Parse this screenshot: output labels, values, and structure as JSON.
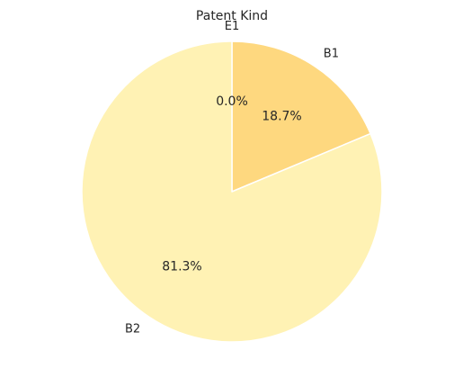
{
  "chart_data": {
    "type": "pie",
    "title": "Patent Kind",
    "categories": [
      "B1",
      "B2",
      "E1"
    ],
    "values": [
      18.7,
      81.3,
      0.0
    ],
    "percent_labels": [
      "18.7%",
      "81.3%",
      "0.0%"
    ],
    "colors": [
      "#fed87f",
      "#fff2b4",
      "#fe9b4a"
    ],
    "start_angle_deg": 90,
    "direction": "clockwise",
    "legend": "none"
  }
}
